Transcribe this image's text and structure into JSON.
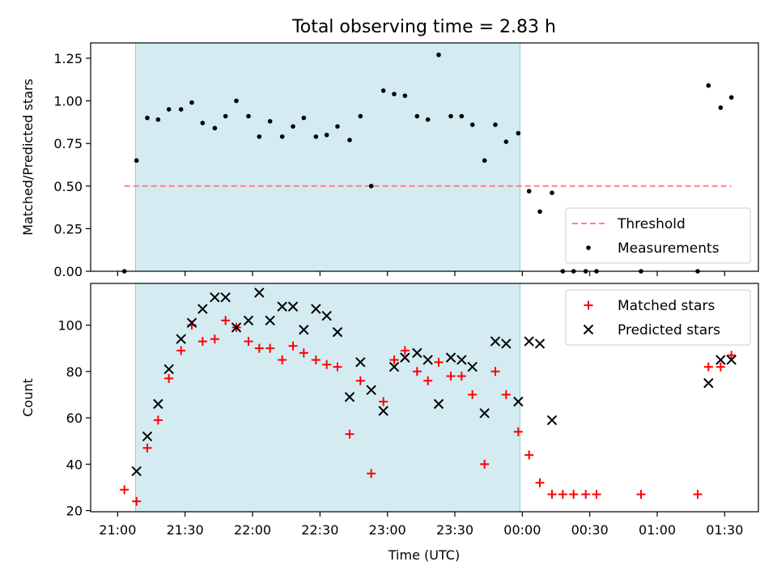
{
  "chart_data": {
    "type": "scatter",
    "title": "Total observing time = 2.83 h",
    "xlabel": "Time (UTC)",
    "xlim": [
      20.8,
      25.75
    ],
    "xticks": [
      {
        "v": 21.0,
        "label": "21:00"
      },
      {
        "v": 21.5,
        "label": "21:30"
      },
      {
        "v": 22.0,
        "label": "22:00"
      },
      {
        "v": 22.5,
        "label": "22:30"
      },
      {
        "v": 23.0,
        "label": "23:00"
      },
      {
        "v": 23.5,
        "label": "23:30"
      },
      {
        "v": 24.0,
        "label": "00:00"
      },
      {
        "v": 24.5,
        "label": "00:30"
      },
      {
        "v": 25.0,
        "label": "01:00"
      },
      {
        "v": 25.5,
        "label": "01:30"
      }
    ],
    "observing_window": [
      21.133,
      23.983
    ],
    "panels": [
      {
        "id": "ratio",
        "ylabel": "Matched/Predicted stars",
        "ylim": [
          0,
          1.34
        ],
        "yticks": [
          "0.00",
          "0.25",
          "0.50",
          "0.75",
          "1.00",
          "1.25"
        ],
        "threshold": {
          "name": "Threshold",
          "y": 0.5,
          "x_range": [
            21.05,
            25.55
          ],
          "color": "#ff7f7f"
        },
        "series": [
          {
            "name": "Measurements",
            "marker": "dot",
            "color": "#000000",
            "points": [
              [
                21.05,
                0.0
              ],
              [
                21.14,
                0.65
              ],
              [
                21.22,
                0.9
              ],
              [
                21.3,
                0.89
              ],
              [
                21.38,
                0.95
              ],
              [
                21.47,
                0.95
              ],
              [
                21.55,
                0.99
              ],
              [
                21.63,
                0.87
              ],
              [
                21.72,
                0.84
              ],
              [
                21.8,
                0.91
              ],
              [
                21.88,
                1.0
              ],
              [
                21.97,
                0.91
              ],
              [
                22.05,
                0.79
              ],
              [
                22.13,
                0.88
              ],
              [
                22.22,
                0.79
              ],
              [
                22.3,
                0.85
              ],
              [
                22.38,
                0.9
              ],
              [
                22.47,
                0.79
              ],
              [
                22.55,
                0.8
              ],
              [
                22.63,
                0.85
              ],
              [
                22.72,
                0.77
              ],
              [
                22.8,
                0.91
              ],
              [
                22.88,
                0.5
              ],
              [
                22.97,
                1.06
              ],
              [
                23.05,
                1.04
              ],
              [
                23.13,
                1.03
              ],
              [
                23.22,
                0.91
              ],
              [
                23.3,
                0.89
              ],
              [
                23.38,
                1.27
              ],
              [
                23.47,
                0.91
              ],
              [
                23.55,
                0.91
              ],
              [
                23.63,
                0.86
              ],
              [
                23.72,
                0.65
              ],
              [
                23.8,
                0.86
              ],
              [
                23.88,
                0.76
              ],
              [
                23.97,
                0.81
              ],
              [
                24.05,
                0.47
              ],
              [
                24.13,
                0.35
              ],
              [
                24.22,
                0.46
              ],
              [
                24.3,
                0.0
              ],
              [
                24.38,
                0.0
              ],
              [
                24.47,
                0.0
              ],
              [
                24.55,
                0.0
              ],
              [
                24.88,
                0.0
              ],
              [
                25.3,
                0.0
              ],
              [
                25.38,
                1.09
              ],
              [
                25.47,
                0.96
              ],
              [
                25.55,
                1.02
              ]
            ]
          }
        ],
        "legend": {
          "position": "lower right",
          "entries": [
            "Threshold",
            "Measurements"
          ]
        }
      },
      {
        "id": "counts",
        "ylabel": "Count",
        "ylim": [
          19.5,
          118
        ],
        "yticks": [
          "20",
          "40",
          "60",
          "80",
          "100"
        ],
        "series": [
          {
            "name": "Matched stars",
            "marker": "plus",
            "color": "#ff0000",
            "points": [
              [
                21.05,
                29
              ],
              [
                21.14,
                24
              ],
              [
                21.22,
                47
              ],
              [
                21.3,
                59
              ],
              [
                21.38,
                77
              ],
              [
                21.47,
                89
              ],
              [
                21.55,
                100
              ],
              [
                21.63,
                93
              ],
              [
                21.72,
                94
              ],
              [
                21.8,
                102
              ],
              [
                21.88,
                99
              ],
              [
                21.97,
                93
              ],
              [
                22.05,
                90
              ],
              [
                22.13,
                90
              ],
              [
                22.22,
                85
              ],
              [
                22.3,
                91
              ],
              [
                22.38,
                88
              ],
              [
                22.47,
                85
              ],
              [
                22.55,
                83
              ],
              [
                22.63,
                82
              ],
              [
                22.72,
                53
              ],
              [
                22.8,
                76
              ],
              [
                22.88,
                36
              ],
              [
                22.97,
                67
              ],
              [
                23.05,
                85
              ],
              [
                23.13,
                89
              ],
              [
                23.22,
                80
              ],
              [
                23.3,
                76
              ],
              [
                23.38,
                84
              ],
              [
                23.47,
                78
              ],
              [
                23.55,
                78
              ],
              [
                23.63,
                70
              ],
              [
                23.72,
                40
              ],
              [
                23.8,
                80
              ],
              [
                23.88,
                70
              ],
              [
                23.97,
                54
              ],
              [
                24.05,
                44
              ],
              [
                24.13,
                32
              ],
              [
                24.22,
                27
              ],
              [
                24.3,
                27
              ],
              [
                24.38,
                27
              ],
              [
                24.47,
                27
              ],
              [
                24.55,
                27
              ],
              [
                24.88,
                27
              ],
              [
                25.3,
                27
              ],
              [
                25.38,
                82
              ],
              [
                25.47,
                82
              ],
              [
                25.55,
                87
              ]
            ]
          },
          {
            "name": "Predicted stars",
            "marker": "x",
            "color": "#000000",
            "points": [
              [
                21.14,
                37
              ],
              [
                21.22,
                52
              ],
              [
                21.3,
                66
              ],
              [
                21.38,
                81
              ],
              [
                21.47,
                94
              ],
              [
                21.55,
                101
              ],
              [
                21.63,
                107
              ],
              [
                21.72,
                112
              ],
              [
                21.8,
                112
              ],
              [
                21.88,
                99
              ],
              [
                21.97,
                102
              ],
              [
                22.05,
                114
              ],
              [
                22.13,
                102
              ],
              [
                22.22,
                108
              ],
              [
                22.3,
                108
              ],
              [
                22.38,
                98
              ],
              [
                22.47,
                107
              ],
              [
                22.55,
                104
              ],
              [
                22.63,
                97
              ],
              [
                22.72,
                69
              ],
              [
                22.8,
                84
              ],
              [
                22.88,
                72
              ],
              [
                22.97,
                63
              ],
              [
                23.05,
                82
              ],
              [
                23.13,
                86
              ],
              [
                23.22,
                88
              ],
              [
                23.3,
                85
              ],
              [
                23.38,
                66
              ],
              [
                23.47,
                86
              ],
              [
                23.55,
                85
              ],
              [
                23.63,
                82
              ],
              [
                23.72,
                62
              ],
              [
                23.8,
                93
              ],
              [
                23.88,
                92
              ],
              [
                23.97,
                67
              ],
              [
                24.05,
                93
              ],
              [
                24.13,
                92
              ],
              [
                24.22,
                59
              ],
              [
                25.38,
                75
              ],
              [
                25.47,
                85
              ],
              [
                25.55,
                85
              ]
            ]
          }
        ],
        "legend": {
          "position": "upper right",
          "entries": [
            "Matched stars",
            "Predicted stars"
          ]
        }
      }
    ]
  }
}
